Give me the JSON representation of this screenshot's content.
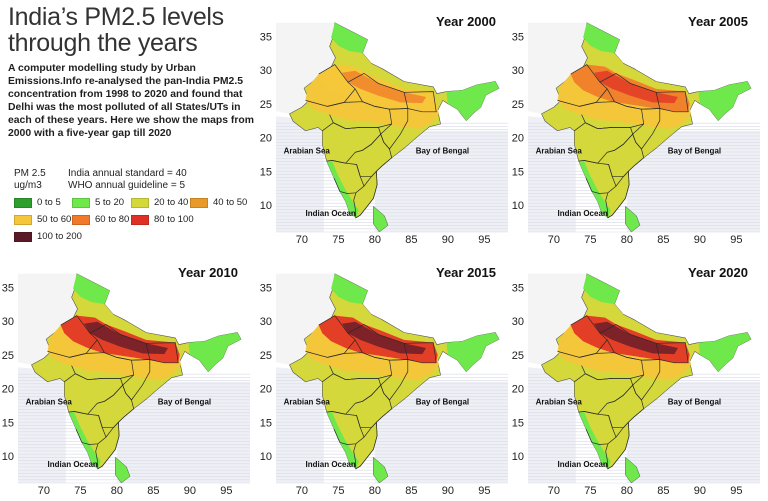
{
  "intro": {
    "title": "India’s PM2.5 levels through the years",
    "description": "A computer modelling study by Urban Emissions.Info re-analysed the pan-India PM2.5 concentration from 1998 to 2020 and found that Delhi was the most polluted of all States/UTs in each of these years. Here we show the maps from 2000 with a five-year gap till 2020"
  },
  "legend": {
    "unit": "PM 2.5 ug/m3",
    "india_standard": "India annual standard = 40",
    "who_guideline": "WHO annual guideline = 5",
    "items": [
      {
        "label": "0 to 5",
        "color": "#2e9e2e"
      },
      {
        "label": "5 to 20",
        "color": "#6ee84a"
      },
      {
        "label": "20 to 40",
        "color": "#d4d83a"
      },
      {
        "label": "40 to 50",
        "color": "#e89a28"
      },
      {
        "label": "50 to 60",
        "color": "#f5c63a"
      },
      {
        "label": "60 to 80",
        "color": "#f07a2a"
      },
      {
        "label": "80 to 100",
        "color": "#e03025"
      },
      {
        "label": "100 to 200",
        "color": "#5a1a2a"
      }
    ]
  },
  "maps": [
    {
      "year": "Year 2000",
      "dominant": "20 to 40",
      "hot": "50 to 60",
      "extreme": "60 to 80"
    },
    {
      "year": "Year 2005",
      "dominant": "20 to 40",
      "hot": "60 to 80",
      "extreme": "80 to 100"
    },
    {
      "year": "Year 2010",
      "dominant": "20 to 40",
      "hot": "80 to 100",
      "extreme": "100 to 200"
    },
    {
      "year": "Year 2015",
      "dominant": "20 to 40",
      "hot": "80 to 100",
      "extreme": "100 to 200"
    },
    {
      "year": "Year 2020",
      "dominant": "20 to 40",
      "hot": "80 to 100",
      "extreme": "100 to 200"
    }
  ],
  "axes": {
    "x_ticks": [
      "70",
      "75",
      "80",
      "85",
      "90",
      "95"
    ],
    "y_ticks": [
      "35",
      "30",
      "25",
      "20",
      "15",
      "10"
    ]
  },
  "labels": {
    "arabian_sea": "Arabian Sea",
    "bay_of_bengal": "Bay of Bengal",
    "indian_ocean": "Indian Ocean"
  }
}
